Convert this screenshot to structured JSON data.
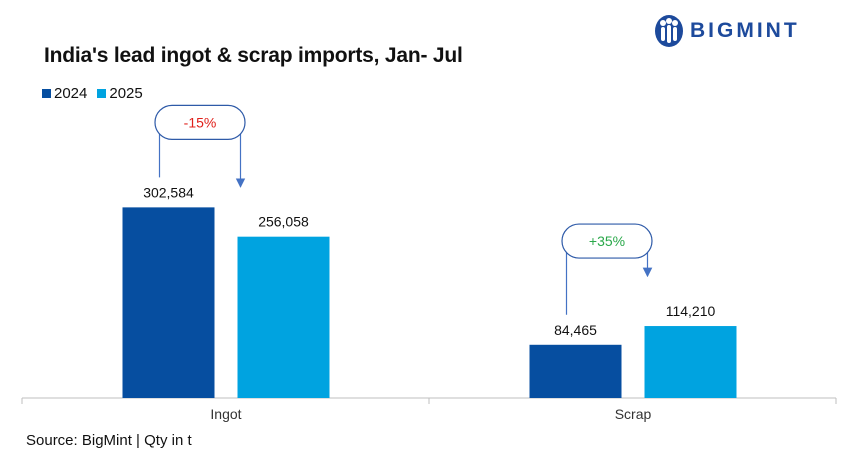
{
  "header": {
    "title": "India's lead ingot & scrap  imports, Jan- Jul",
    "brand": "BIGMINT",
    "logo_icon": "bigmint-people-logo-icon"
  },
  "legend": [
    {
      "label": "2024",
      "color": "#064ea0"
    },
    {
      "label": "2025",
      "color": "#00a3e0"
    }
  ],
  "footer": {
    "source": "Source: BigMint | Qty in t"
  },
  "chart_data": {
    "type": "bar",
    "title": "India's lead ingot & scrap  imports, Jan- Jul",
    "categories": [
      "Ingot",
      "Scrap"
    ],
    "series": [
      {
        "name": "2024",
        "values": [
          302584,
          84465
        ],
        "labels": [
          "302,584",
          "84,465"
        ],
        "color": "#064ea0"
      },
      {
        "name": "2025",
        "values": [
          256058,
          114210
        ],
        "labels": [
          "256,058",
          "114,210"
        ],
        "color": "#00a3e0"
      }
    ],
    "annotations": [
      {
        "category": "Ingot",
        "label": "-15%",
        "color": "#e0201b"
      },
      {
        "category": "Scrap",
        "label": "+35%",
        "color": "#2aa84a"
      }
    ],
    "ylim": [
      0,
      350000
    ],
    "xlabel": "",
    "ylabel": "",
    "grid": false,
    "legend_position": "top-left",
    "units": "t"
  }
}
